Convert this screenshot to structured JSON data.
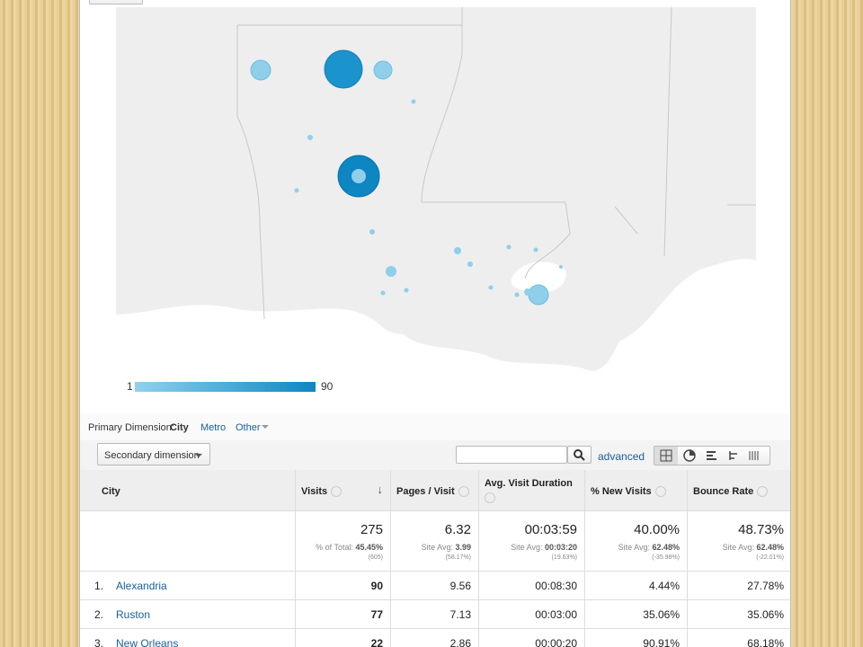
{
  "map_legend": {
    "min": "1",
    "max": "90"
  },
  "dimension_bar": {
    "label": "Primary Dimension:",
    "options": [
      "City",
      "Metro",
      "Other"
    ]
  },
  "toolbar": {
    "secondary": "Secondary dimension",
    "advanced": "advanced"
  },
  "table": {
    "columns": [
      "City",
      "Visits",
      "Pages / Visit",
      "Avg. Visit Duration",
      "% New Visits",
      "Bounce Rate"
    ],
    "totals": [
      {
        "main": "275",
        "label": "% of Total:",
        "value": "45.45%",
        "sub": "(605)"
      },
      {
        "main": "6.32",
        "label": "Site Avg:",
        "value": "3.99",
        "sub": "(58.17%)"
      },
      {
        "main": "00:03:59",
        "label": "Site Avg:",
        "value": "00:03:20",
        "sub": "(19.63%)"
      },
      {
        "main": "40.00%",
        "label": "Site Avg:",
        "value": "62.48%",
        "sub": "(-35.98%)"
      },
      {
        "main": "48.73%",
        "label": "Site Avg:",
        "value": "62.48%",
        "sub": "(-22.01%)"
      }
    ],
    "rows": [
      [
        "1.",
        "Alexandria",
        "90",
        "9.56",
        "00:08:30",
        "4.44%",
        "27.78%"
      ],
      [
        "2.",
        "Ruston",
        "77",
        "7.13",
        "00:03:00",
        "35.06%",
        "35.06%"
      ],
      [
        "3.",
        "New Orleans",
        "22",
        "2.86",
        "00:00:20",
        "90.91%",
        "68.18%"
      ]
    ]
  }
}
